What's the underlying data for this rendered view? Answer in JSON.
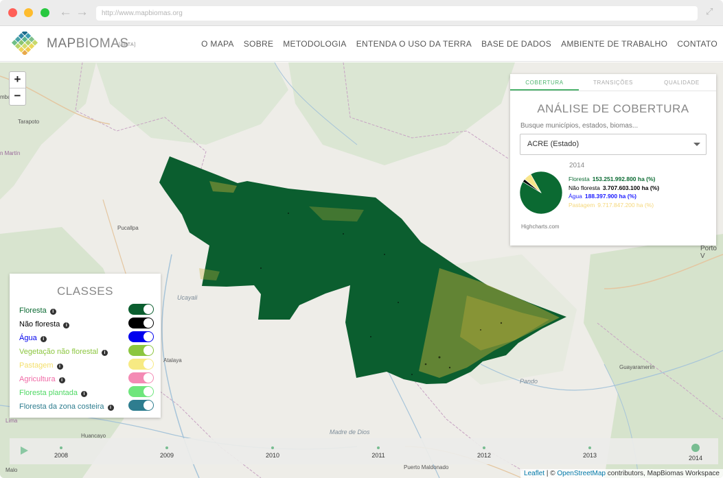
{
  "browser": {
    "url": "http://www.mapbiomas.org"
  },
  "brand": {
    "name_bold": "MAP",
    "name_thin": "BIOMAS",
    "beta": "[BETA]"
  },
  "menu": [
    "O MAPA",
    "SOBRE",
    "METODOLOGIA",
    "ENTENDA O USO DA TERRA",
    "BASE DE DADOS",
    "AMBIENTE DE TRABALHO",
    "CONTATO"
  ],
  "map": {
    "zoom_in": "+",
    "zoom_out": "−",
    "labels": {
      "tarapoto": "Tarapoto",
      "san_martin": "n Martín",
      "mba": "mba",
      "pucallpa": "Pucallpa",
      "ucayali": "Ucayali",
      "atalaya": "Atalaya",
      "lima": "Lima",
      "malo": "Malo",
      "huancayo": "Huancayo",
      "madre_de_dios": "Madre de Dios",
      "puerto_maldonado": "Puerto Maldonado",
      "pando": "Pando",
      "guayaramerin": "Guayaramerín",
      "porto_velho": "Porto V"
    }
  },
  "analysis": {
    "tabs": [
      "COBERTURA",
      "TRANSIÇÕES",
      "QUALIDADE"
    ],
    "active_tab": "COBERTURA",
    "title": "ANÁLISE DE COBERTURA",
    "search_label": "Busque municípios, estados, biomas...",
    "selected": "ACRE (Estado)",
    "year": "2014",
    "credit": "Highcharts.com",
    "rows": [
      {
        "label": "Floresta",
        "value": "153.251.992.800 ha (%)",
        "color": "#0b6a32"
      },
      {
        "label": "Não floresta",
        "value": "3.707.603.100 ha (%)",
        "color": "#000000"
      },
      {
        "label": "Água",
        "value": "188.397.900 ha (%)",
        "color": "#1a1aff"
      },
      {
        "label": "Pastagem",
        "value": "9.717.847.200 ha (%)",
        "color": "#f8e58a"
      }
    ]
  },
  "chart_data": {
    "type": "pie",
    "categories": [
      "Floresta",
      "Não floresta",
      "Água",
      "Pastagem"
    ],
    "values": [
      153251992800,
      3707603100,
      188397900,
      9717847200
    ],
    "colors": [
      "#0b6a32",
      "#000000",
      "#1a1aff",
      "#f8e58a"
    ],
    "title": "2014"
  },
  "classes": {
    "title": "CLASSES",
    "items": [
      {
        "label": "Floresta",
        "color": "#0b6a32",
        "on": true
      },
      {
        "label": "Não floresta",
        "color": "#000000",
        "on": true
      },
      {
        "label": "Água",
        "color": "#0000ee",
        "on": true
      },
      {
        "label": "Vegetação não florestal",
        "color": "#8cc63f",
        "on": true
      },
      {
        "label": "Pastagem",
        "color": "#f7ea83",
        "on": true
      },
      {
        "label": "Agricultura",
        "color": "#f48ab4",
        "on": true
      },
      {
        "label": "Floresta plantada",
        "color": "#6ee67c",
        "on": true
      },
      {
        "label": "Floresta da zona costeira",
        "color": "#2e7d8f",
        "on": true
      }
    ]
  },
  "timeline": {
    "years": [
      "2008",
      "2009",
      "2010",
      "2011",
      "2012",
      "2013",
      "2014"
    ],
    "active_year": "2014"
  },
  "attribution": {
    "leaflet": "Leaflet",
    "sep": " | © ",
    "osm": "OpenStreetMap",
    "rest": " contributors, MapBiomas Workspace"
  }
}
